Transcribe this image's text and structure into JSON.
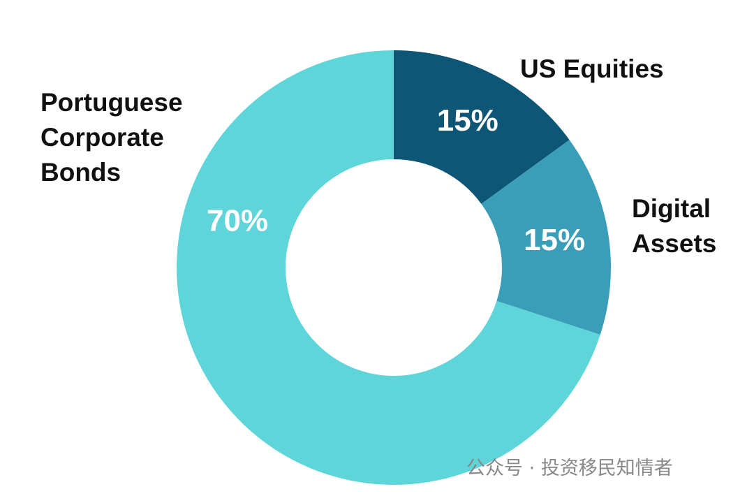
{
  "chart_data": {
    "type": "pie",
    "categories": [
      "US Equities",
      "Digital Assets",
      "Portuguese Corporate Bonds"
    ],
    "values": [
      15,
      15,
      70
    ],
    "value_labels": [
      "15%",
      "15%",
      "70%"
    ],
    "colors": [
      "#0e5675",
      "#3a9eb8",
      "#5dd5d9"
    ],
    "watermark": "公众号 · 投资移民知情者"
  }
}
